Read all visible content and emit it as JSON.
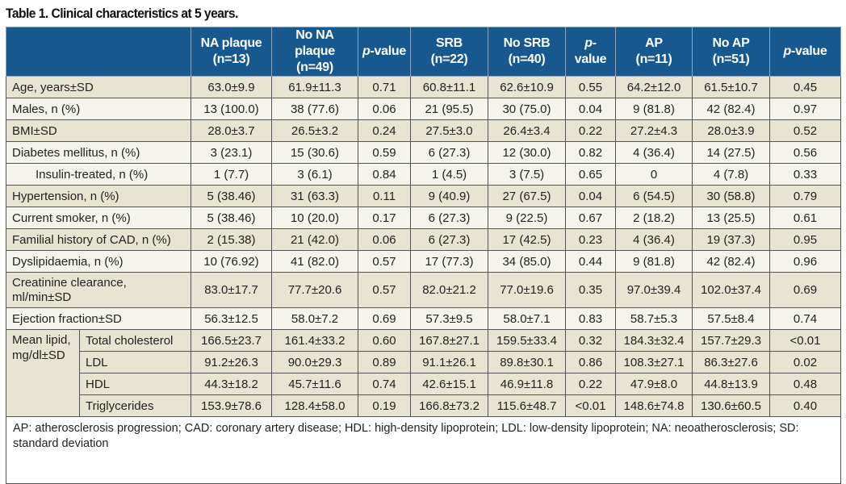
{
  "title": "Table 1. Clinical characteristics at 5 years.",
  "headers": [
    {
      "l1": "NA plaque",
      "l2": "(n=13)"
    },
    {
      "l1": "No NA plaque",
      "l2": "(n=49)"
    },
    {
      "p": "p",
      "rest": "-value"
    },
    {
      "l1": "SRB",
      "l2": "(n=22)"
    },
    {
      "l1": "No SRB",
      "l2": "(n=40)"
    },
    {
      "p": "p",
      "rest": "-value"
    },
    {
      "l1": "AP",
      "l2": "(n=11)"
    },
    {
      "l1": "No AP",
      "l2": "(n=51)"
    },
    {
      "p": "p",
      "rest": "-value"
    }
  ],
  "rows": [
    {
      "label": "Age, years±SD",
      "values": [
        "63.0±9.9",
        "61.9±11.3",
        "0.71",
        "60.8±11.1",
        "62.6±10.9",
        "0.55",
        "64.2±12.0",
        "61.5±10.7",
        "0.45"
      ]
    },
    {
      "label": "Males, n (%)",
      "values": [
        "13 (100.0)",
        "38 (77.6)",
        "0.06",
        "21 (95.5)",
        "30 (75.0)",
        "0.04",
        "9 (81.8)",
        "42 (82.4)",
        "0.97"
      ]
    },
    {
      "label": "BMI±SD",
      "values": [
        "28.0±3.7",
        "26.5±3.2",
        "0.24",
        "27.5±3.0",
        "26.4±3.4",
        "0.22",
        "27.2±4.3",
        "28.0±3.9",
        "0.52"
      ]
    },
    {
      "label": "Diabetes mellitus, n (%)",
      "values": [
        "3 (23.1)",
        "15 (30.6)",
        "0.59",
        "6 (27.3)",
        "12 (30.0)",
        "0.82",
        "4 (36.4)",
        "14 (27.5)",
        "0.56"
      ]
    },
    {
      "label": "Insulin-treated, n (%)",
      "values": [
        "1 (7.7)",
        "3 (6.1)",
        "0.84",
        "1 (4.5)",
        "3 (7.5)",
        "0.65",
        "0",
        "4 (7.8)",
        "0.33"
      ]
    },
    {
      "label": "Hypertension, n (%)",
      "values": [
        "5 (38.46)",
        "31 (63.3)",
        "0.11",
        "9 (40.9)",
        "27 (67.5)",
        "0.04",
        "6 (54.5)",
        "30 (58.8)",
        "0.79"
      ]
    },
    {
      "label": "Current smoker, n (%)",
      "values": [
        "5 (38.46)",
        "10 (20.0)",
        "0.17",
        "6 (27.3)",
        "9 (22.5)",
        "0.67",
        "2 (18.2)",
        "13 (25.5)",
        "0.61"
      ]
    },
    {
      "label": "Familial history of CAD, n (%)",
      "values": [
        "2 (15.38)",
        "21 (42.0)",
        "0.06",
        "6 (27.3)",
        "17 (42.5)",
        "0.23",
        "4 (36.4)",
        "19 (37.3)",
        "0.95"
      ]
    },
    {
      "label": "Dyslipidaemia, n (%)",
      "values": [
        "10 (76.92)",
        "41 (82.0)",
        "0.57",
        "17 (77.3)",
        "34 (85.0)",
        "0.44",
        "9 (81.8)",
        "42 (82.4)",
        "0.96"
      ]
    },
    {
      "label": "Creatinine clearance, ml/min±SD",
      "values": [
        "83.0±17.7",
        "77.7±20.6",
        "0.57",
        "82.0±21.2",
        "77.0±19.6",
        "0.35",
        "97.0±39.4",
        "102.0±37.4",
        "0.69"
      ]
    },
    {
      "label": "Ejection fraction±SD",
      "values": [
        "56.3±12.5",
        "58.0±7.2",
        "0.69",
        "57.3±9.5",
        "58.0±7.1",
        "0.83",
        "58.7±5.3",
        "57.5±8.4",
        "0.74"
      ]
    }
  ],
  "lipid_group": "Mean lipid, mg/dl±SD",
  "lipid_rows": [
    {
      "label": "Total cholesterol",
      "values": [
        "166.5±23.7",
        "161.4±33.2",
        "0.60",
        "167.8±27.1",
        "159.5±33.4",
        "0.32",
        "184.3±32.4",
        "157.7±29.3",
        "<0.01"
      ]
    },
    {
      "label": "LDL",
      "values": [
        "91.2±26.3",
        "90.0±29.3",
        "0.89",
        "91.1±26.1",
        "89.8±30.1",
        "0.86",
        "108.3±27.1",
        "86.3±27.6",
        "0.02"
      ]
    },
    {
      "label": "HDL",
      "values": [
        "44.3±18.2",
        "45.7±11.6",
        "0.74",
        "42.6±15.1",
        "46.9±11.8",
        "0.22",
        "47.9±8.0",
        "44.8±13.9",
        "0.48"
      ]
    },
    {
      "label": "Triglycerides",
      "values": [
        "153.9±78.6",
        "128.4±58.0",
        "0.19",
        "166.8±73.2",
        "115.6±48.7",
        "<0.01",
        "148.6±74.8",
        "130.6±60.5",
        "0.40"
      ]
    }
  ],
  "footnote": "AP: atherosclerosis progression; CAD: coronary artery disease; HDL: high-density lipoprotein; LDL: low-density lipoprotein; NA: neoatherosclerosis; SD: standard deviation"
}
